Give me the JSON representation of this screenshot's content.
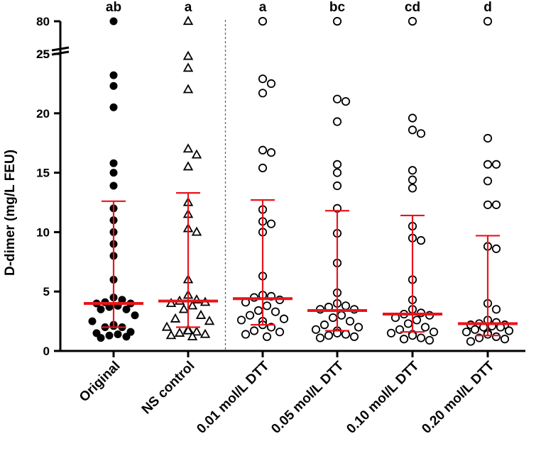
{
  "chart_data": {
    "type": "scatter",
    "ylabel": "D-dimer  (mg/L FEU)",
    "y_break": {
      "lower_range": [
        0,
        25
      ],
      "upper_range": [
        25,
        80
      ]
    },
    "y_ticks": [
      "0",
      "5",
      "10",
      "15",
      "20",
      "25",
      "25",
      "80"
    ],
    "categories": [
      "Original",
      "NS control",
      "0.01 mol/L DTT",
      "0.05 mol/L DTT",
      "0.10 mol/L DTT",
      "0.20 mol/L DTT"
    ],
    "significance": [
      "ab",
      "a",
      "a",
      "bc",
      "cd",
      "d"
    ],
    "marker": [
      "filled-circle",
      "open-triangle",
      "open-circle",
      "open-circle",
      "open-circle",
      "open-circle"
    ],
    "divider_after_category": 1,
    "colors": {
      "points": "#000000",
      "summary": "#e8141b"
    },
    "series": [
      {
        "values": [
          80,
          23.2,
          22.3,
          20.5,
          15.8,
          15.0,
          13.9,
          12.0,
          11.0,
          10.0,
          9.0,
          8.0,
          6.0,
          4.5,
          4.3,
          4.1,
          4.0,
          4.0,
          3.8,
          3.7,
          3.5,
          3.5,
          3.0,
          2.5,
          2.2,
          2.1,
          2.0,
          2.0,
          1.6,
          1.5,
          1.4,
          1.3,
          1.2,
          1.1
        ],
        "median": 4.0,
        "lower": 2.0,
        "upper": 12.6
      },
      {
        "values": [
          80,
          24.8,
          23.8,
          22.0,
          17.0,
          16.5,
          15.5,
          12.5,
          11.5,
          10.3,
          10.0,
          6.0,
          4.7,
          4.3,
          4.2,
          4.1,
          4.0,
          3.8,
          3.5,
          3.0,
          2.7,
          2.5,
          2.0,
          1.8,
          1.7,
          1.6,
          1.5,
          1.4,
          1.3,
          1.2
        ],
        "median": 4.2,
        "lower": 2.0,
        "upper": 13.3
      },
      {
        "values": [
          80,
          22.9,
          22.5,
          21.7,
          16.9,
          16.7,
          15.4,
          11.9,
          10.9,
          10.7,
          10.0,
          6.3,
          4.7,
          4.6,
          4.5,
          4.3,
          4.1,
          3.8,
          3.4,
          3.3,
          3.0,
          2.7,
          2.6,
          2.5,
          2.2,
          2.0,
          1.7,
          1.6,
          1.4,
          1.2
        ],
        "median": 4.4,
        "lower": 2.2,
        "upper": 12.7
      },
      {
        "values": [
          80,
          21.2,
          21.0,
          19.3,
          15.7,
          15.0,
          13.9,
          12.0,
          9.9,
          7.4,
          4.9,
          4.0,
          3.8,
          3.7,
          3.5,
          3.5,
          3.0,
          2.8,
          2.5,
          2.2,
          2.0,
          1.8,
          1.7,
          1.5,
          1.4,
          1.3,
          1.2,
          1.1
        ],
        "median": 3.4,
        "lower": 1.7,
        "upper": 11.8
      },
      {
        "values": [
          80,
          19.6,
          18.6,
          18.3,
          15.2,
          14.4,
          13.7,
          10.5,
          9.5,
          9.3,
          6.0,
          4.3,
          3.5,
          3.2,
          3.1,
          3.0,
          2.8,
          2.6,
          2.3,
          2.0,
          1.8,
          1.6,
          1.5,
          1.4,
          1.3,
          1.1,
          1.0,
          0.9
        ],
        "median": 3.1,
        "lower": 1.6,
        "upper": 11.4
      },
      {
        "values": [
          80,
          17.9,
          15.7,
          15.7,
          14.3,
          12.3,
          12.3,
          8.8,
          8.6,
          4.0,
          3.5,
          2.6,
          2.4,
          2.3,
          2.2,
          2.2,
          2.1,
          2.0,
          2.0,
          1.8,
          1.7,
          1.6,
          1.5,
          1.4,
          1.2,
          1.1,
          1.0,
          0.8
        ],
        "median": 2.3,
        "lower": 1.3,
        "upper": 9.7
      }
    ]
  }
}
